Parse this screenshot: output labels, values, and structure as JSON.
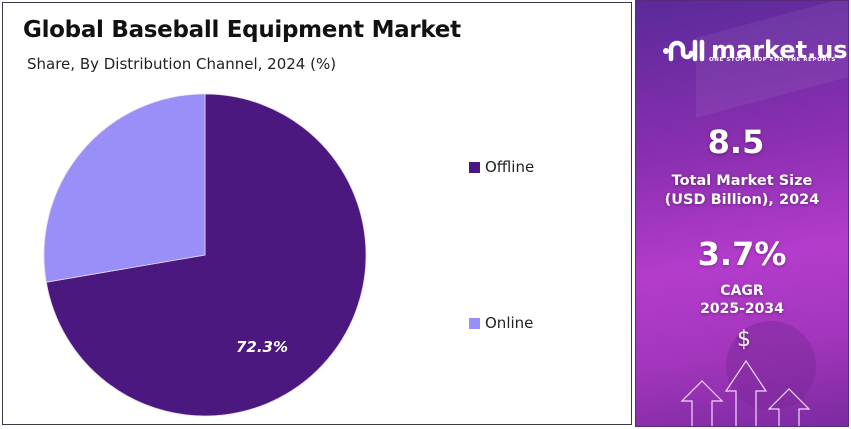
{
  "header": {
    "title": "Global Baseball Equipment Market",
    "subtitle": "Share, By Distribution Channel, 2024 (%)"
  },
  "chart_data": {
    "type": "pie",
    "title": "Global Baseball Equipment Market",
    "subtitle": "Share, By Distribution Channel, 2024 (%)",
    "categories": [
      "Offline",
      "Online"
    ],
    "values": [
      72.3,
      27.7
    ],
    "colors": [
      "#4b1880",
      "#9a8ff8"
    ],
    "data_labels": [
      "72.3%",
      ""
    ],
    "start_angle": "12 o'clock, clockwise",
    "legend_position": "right"
  },
  "legend": [
    {
      "label": "Offline",
      "color": "#4b1880"
    },
    {
      "label": "Online",
      "color": "#9a8ff8"
    }
  ],
  "pie_label": "72.3%",
  "sidebar": {
    "brand": "market.us",
    "tagline": "ONE STOP SHOP FOR THE REPORTS",
    "market_size_value": "8.5",
    "market_size_label_1": "Total Market Size",
    "market_size_label_2": "(USD Billion), 2024",
    "cagr_value": "3.7%",
    "cagr_label_1": "CAGR",
    "cagr_label_2": "2025-2034",
    "currency_symbol": "$"
  }
}
